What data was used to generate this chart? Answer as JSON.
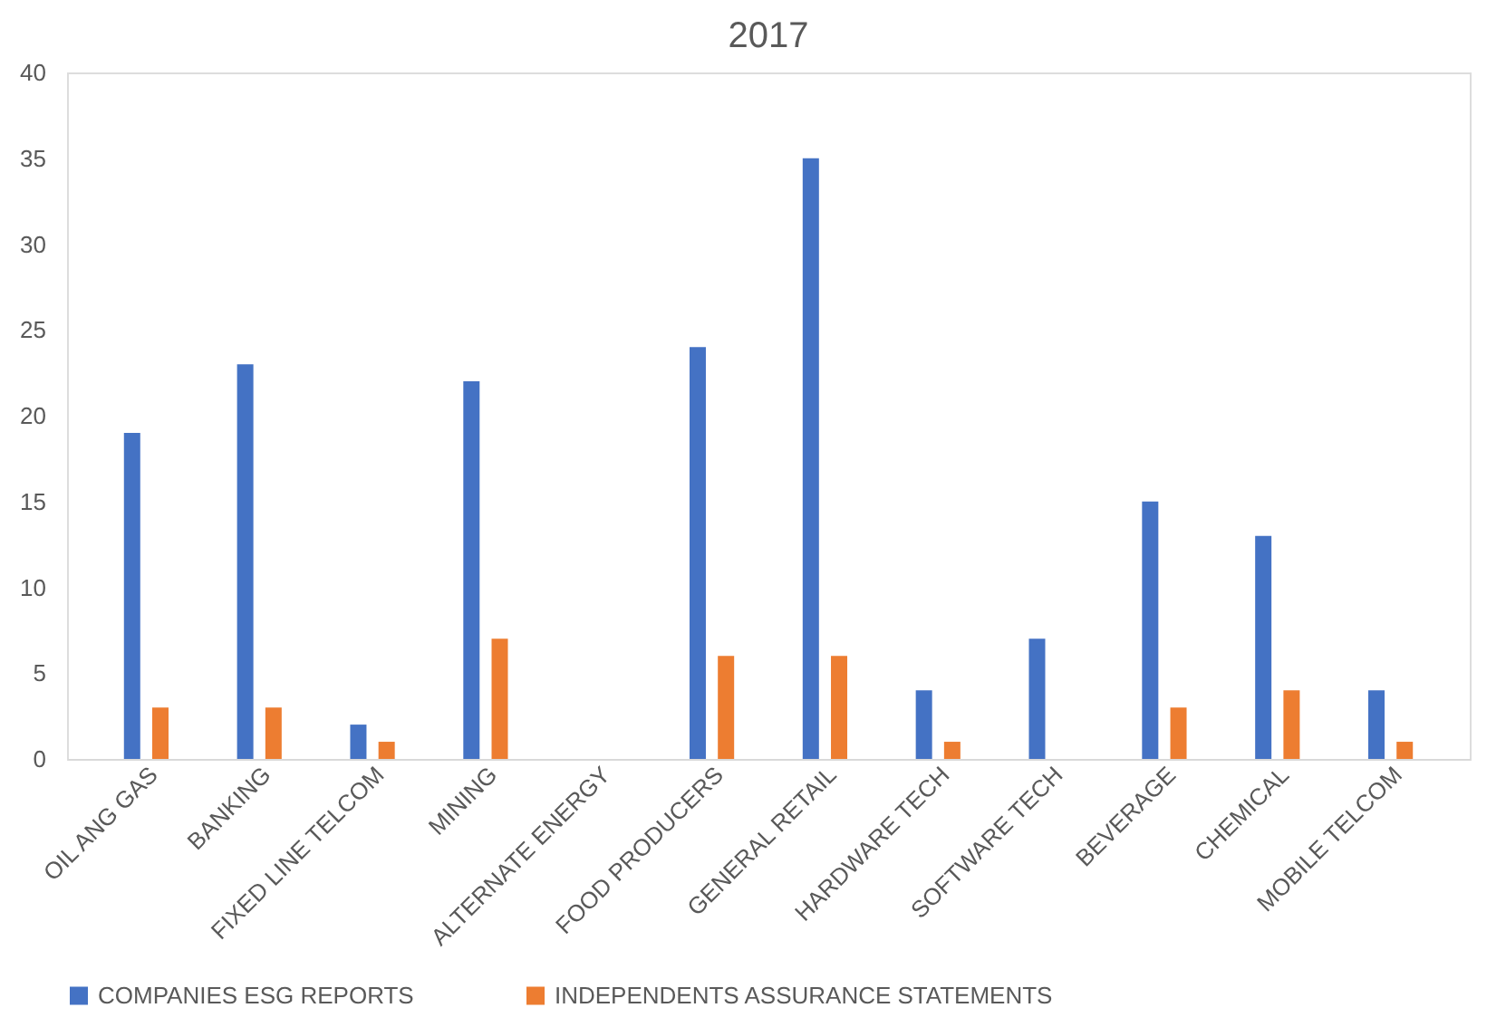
{
  "chart_data": {
    "type": "bar",
    "title": "2017",
    "categories": [
      "OIL ANG GAS",
      "BANKING",
      "FIXED LINE TELCOM",
      "MINING",
      "ALTERNATE ENERGY",
      "FOOD PRODUCERS",
      "GENERAL RETAIL",
      "HARDWARE TECH",
      "SOFTWARE TECH",
      "BEVERAGE",
      "CHEMICAL",
      "MOBILE TELCOM"
    ],
    "series": [
      {
        "name": "COMPANIES ESG REPORTS",
        "color": "#4472c4",
        "values": [
          19,
          23,
          2,
          22,
          0,
          24,
          35,
          4,
          7,
          15,
          13,
          4
        ]
      },
      {
        "name": "INDEPENDENTS ASSURANCE STATEMENTS",
        "color": "#ed7d31",
        "values": [
          3,
          3,
          1,
          7,
          0,
          6,
          6,
          1,
          0,
          3,
          4,
          1
        ]
      }
    ],
    "ylim": [
      0,
      40
    ],
    "yticks": [
      0,
      5,
      10,
      15,
      20,
      25,
      30,
      35,
      40
    ],
    "grid": false,
    "legend": "bottom"
  }
}
